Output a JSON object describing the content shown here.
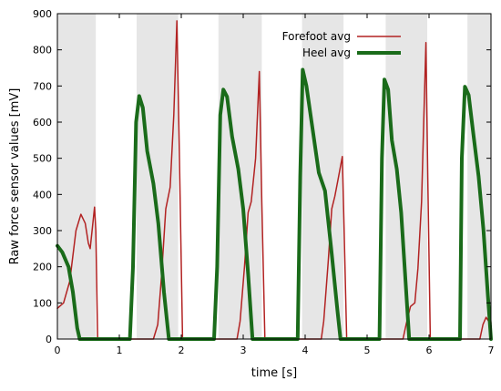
{
  "chart_data": {
    "type": "line",
    "xlabel": "time [s]",
    "ylabel": "Raw force sensor values [mV]",
    "xlim": [
      0,
      7
    ],
    "ylim": [
      0,
      900
    ],
    "x_ticks": [
      "0",
      "1",
      "2",
      "3",
      "4",
      "5",
      "6",
      "7"
    ],
    "y_ticks": [
      "0",
      "100",
      "200",
      "300",
      "400",
      "500",
      "600",
      "700",
      "800",
      "900"
    ],
    "legend_position": "top-right",
    "shaded_bands": [
      [
        0,
        0.62
      ],
      [
        1.28,
        1.95
      ],
      [
        2.6,
        3.3
      ],
      [
        3.95,
        4.62
      ],
      [
        5.3,
        5.97
      ],
      [
        6.62,
        7.0
      ]
    ],
    "band_color": "#e6e6e6",
    "series": [
      {
        "name": "Forefoot avg",
        "color": "#b22222",
        "line_width": 1.5,
        "points": [
          [
            0,
            85
          ],
          [
            0.1,
            100
          ],
          [
            0.2,
            160
          ],
          [
            0.3,
            300
          ],
          [
            0.38,
            345
          ],
          [
            0.45,
            320
          ],
          [
            0.5,
            265
          ],
          [
            0.53,
            250
          ],
          [
            0.56,
            300
          ],
          [
            0.6,
            365
          ],
          [
            0.62,
            300
          ],
          [
            0.65,
            0
          ],
          [
            1.55,
            0
          ],
          [
            1.62,
            40
          ],
          [
            1.68,
            170
          ],
          [
            1.75,
            360
          ],
          [
            1.82,
            420
          ],
          [
            1.88,
            620
          ],
          [
            1.93,
            880
          ],
          [
            1.97,
            500
          ],
          [
            2.02,
            0
          ],
          [
            2.9,
            0
          ],
          [
            2.95,
            50
          ],
          [
            3.02,
            200
          ],
          [
            3.08,
            350
          ],
          [
            3.13,
            380
          ],
          [
            3.2,
            500
          ],
          [
            3.26,
            740
          ],
          [
            3.3,
            380
          ],
          [
            3.35,
            0
          ],
          [
            4.26,
            0
          ],
          [
            4.3,
            50
          ],
          [
            4.37,
            210
          ],
          [
            4.43,
            360
          ],
          [
            4.48,
            395
          ],
          [
            4.53,
            440
          ],
          [
            4.6,
            505
          ],
          [
            4.63,
            300
          ],
          [
            4.67,
            0
          ],
          [
            5.58,
            0
          ],
          [
            5.63,
            40
          ],
          [
            5.7,
            90
          ],
          [
            5.77,
            100
          ],
          [
            5.82,
            195
          ],
          [
            5.88,
            380
          ],
          [
            5.92,
            640
          ],
          [
            5.95,
            820
          ],
          [
            5.98,
            450
          ],
          [
            6.02,
            0
          ],
          [
            6.82,
            0
          ],
          [
            6.87,
            40
          ],
          [
            6.92,
            60
          ],
          [
            6.98,
            45
          ],
          [
            7.0,
            45
          ]
        ]
      },
      {
        "name": "Heel avg",
        "color": "#1a6b1a",
        "line_width": 4,
        "points": [
          [
            0,
            258
          ],
          [
            0.08,
            240
          ],
          [
            0.18,
            200
          ],
          [
            0.25,
            130
          ],
          [
            0.32,
            30
          ],
          [
            0.36,
            0
          ],
          [
            1.17,
            0
          ],
          [
            1.22,
            200
          ],
          [
            1.27,
            600
          ],
          [
            1.32,
            672
          ],
          [
            1.38,
            640
          ],
          [
            1.45,
            520
          ],
          [
            1.55,
            430
          ],
          [
            1.63,
            320
          ],
          [
            1.72,
            130
          ],
          [
            1.8,
            0
          ],
          [
            2.53,
            0
          ],
          [
            2.58,
            200
          ],
          [
            2.63,
            620
          ],
          [
            2.68,
            690
          ],
          [
            2.74,
            670
          ],
          [
            2.82,
            560
          ],
          [
            2.92,
            470
          ],
          [
            3.0,
            360
          ],
          [
            3.08,
            180
          ],
          [
            3.15,
            0
          ],
          [
            3.88,
            0
          ],
          [
            3.92,
            450
          ],
          [
            3.96,
            745
          ],
          [
            4.02,
            700
          ],
          [
            4.12,
            580
          ],
          [
            4.22,
            460
          ],
          [
            4.32,
            410
          ],
          [
            4.42,
            250
          ],
          [
            4.52,
            80
          ],
          [
            4.57,
            0
          ],
          [
            5.2,
            0
          ],
          [
            5.24,
            500
          ],
          [
            5.28,
            718
          ],
          [
            5.34,
            690
          ],
          [
            5.4,
            550
          ],
          [
            5.48,
            470
          ],
          [
            5.55,
            350
          ],
          [
            5.62,
            160
          ],
          [
            5.68,
            0
          ],
          [
            6.5,
            0
          ],
          [
            6.53,
            500
          ],
          [
            6.58,
            698
          ],
          [
            6.64,
            675
          ],
          [
            6.72,
            560
          ],
          [
            6.8,
            450
          ],
          [
            6.88,
            300
          ],
          [
            6.95,
            120
          ],
          [
            7.0,
            0
          ]
        ]
      }
    ]
  }
}
